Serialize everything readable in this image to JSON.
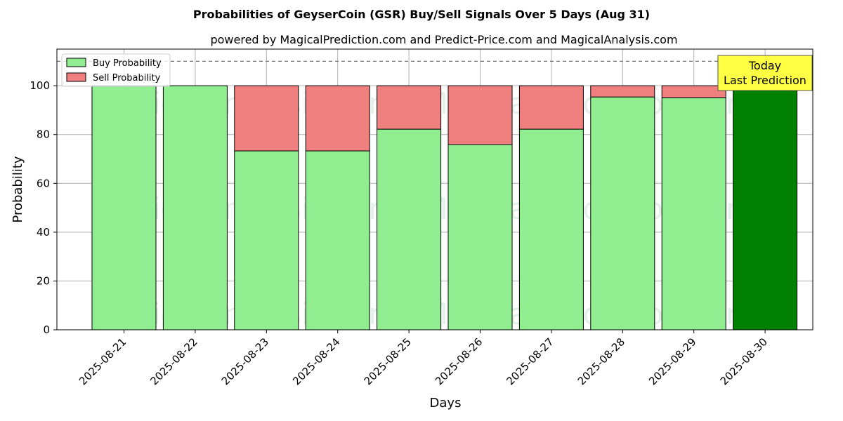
{
  "chart_data": {
    "type": "bar",
    "stacked": true,
    "title": "Probabilities of GeyserCoin (GSR) Buy/Sell Signals Over 5 Days (Aug 31)",
    "subtitle": "powered by MagicalPrediction.com and Predict-Price.com and MagicalAnalysis.com",
    "xlabel": "Days",
    "ylabel": "Probability",
    "ylim": [
      0,
      115
    ],
    "yticks": [
      0,
      20,
      40,
      60,
      80,
      100
    ],
    "grid": true,
    "legend_position": "top-left",
    "reference_line": 110,
    "categories": [
      "2025-08-21",
      "2025-08-22",
      "2025-08-23",
      "2025-08-24",
      "2025-08-25",
      "2025-08-26",
      "2025-08-27",
      "2025-08-28",
      "2025-08-29",
      "2025-08-30"
    ],
    "series": [
      {
        "name": "Buy Probability",
        "color": "#90ee90",
        "values": [
          100,
          100,
          73.3,
          73.3,
          82.2,
          75.9,
          82.2,
          95.4,
          95.1,
          100
        ]
      },
      {
        "name": "Sell Probability",
        "color": "#f08080",
        "values": [
          0,
          0,
          26.7,
          26.7,
          17.8,
          24.1,
          17.8,
          4.6,
          4.9,
          0
        ]
      }
    ],
    "highlight": {
      "index": 9,
      "color": "#008000"
    },
    "annotation": {
      "line1": "Today",
      "line2": "Last Prediction",
      "color": "#ffff44"
    },
    "watermarks": [
      "MagicalAnalysis.com",
      "MagicalPrediction.com"
    ]
  }
}
